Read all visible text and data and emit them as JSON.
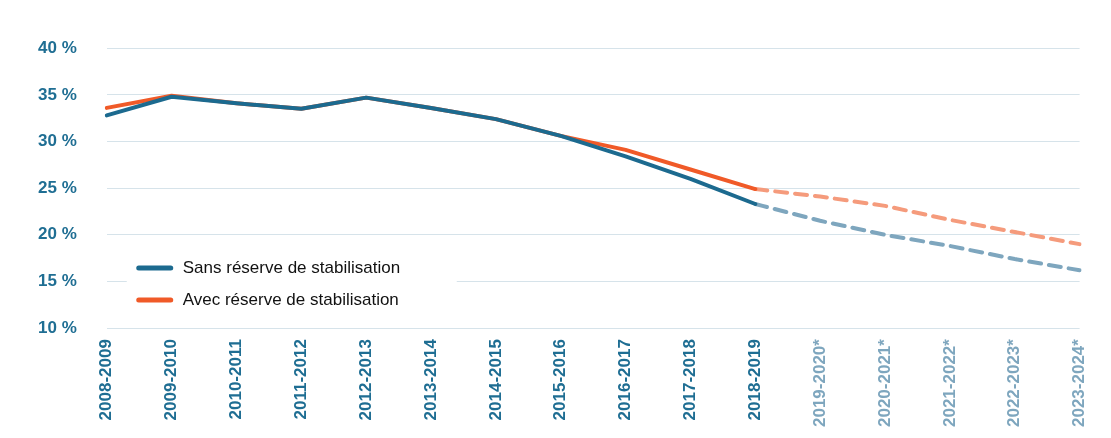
{
  "chart_data": {
    "type": "line",
    "categories": [
      "2008-2009",
      "2009-2010",
      "2010-2011",
      "2011-2012",
      "2012-2013",
      "2013-2014",
      "2014-2015",
      "2015-2016",
      "2016-2017",
      "2017-2018",
      "2018-2019",
      "2019-2020*",
      "2020-2021*",
      "2021-2022*",
      "2022-2023*",
      "2023-2024*"
    ],
    "series": [
      {
        "name": "Sans réserve de stabilisation",
        "color": "#1c6a8f",
        "line_style": "solid",
        "values": [
          32.8,
          34.8,
          34.1,
          33.5,
          34.7,
          33.6,
          32.4,
          30.6,
          28.4,
          26.0,
          23.3,
          null,
          null,
          null,
          null,
          null
        ]
      },
      {
        "name": "Avec réserve de stabilisation",
        "color": "#f05a28",
        "line_style": "solid",
        "values": [
          33.6,
          34.9,
          34.1,
          33.5,
          34.7,
          33.6,
          32.4,
          30.6,
          29.1,
          27.0,
          24.9,
          null,
          null,
          null,
          null,
          null
        ]
      },
      {
        "color": "#7ea6be",
        "line_style": "dashed",
        "values": [
          null,
          null,
          null,
          null,
          null,
          null,
          null,
          null,
          null,
          null,
          23.3,
          21.5,
          20.0,
          18.8,
          17.4,
          16.2
        ]
      },
      {
        "color": "#f59b7c",
        "line_style": "dashed",
        "values": [
          null,
          null,
          null,
          null,
          null,
          null,
          null,
          null,
          null,
          null,
          24.9,
          24.1,
          23.1,
          21.6,
          20.3,
          19.0
        ]
      }
    ],
    "ylim": [
      10,
      40
    ],
    "yticks": [
      {
        "value": 10,
        "label": "10 %"
      },
      {
        "value": 15,
        "label": "15 %"
      },
      {
        "value": 20,
        "label": "20 %"
      },
      {
        "value": 25,
        "label": "25 %"
      },
      {
        "value": 30,
        "label": "30 %"
      },
      {
        "value": 35,
        "label": "35 %"
      },
      {
        "value": 40,
        "label": "40 %"
      }
    ],
    "grid": "y",
    "legend": "bottom left",
    "marker": "none"
  }
}
